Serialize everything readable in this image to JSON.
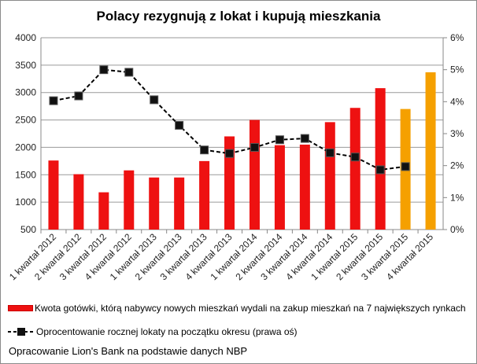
{
  "chart_data": {
    "type": "bar",
    "title": "Polacy rezygnują z lokat i kupują mieszkania",
    "categories": [
      "1 kwartał 2012",
      "2 kwartał 2012",
      "3 kwartał 2012",
      "4 kwartał 2012",
      "1 kwartał 2013",
      "2 kwartał 2013",
      "3 kwartał 2013",
      "4 kwartał 2013",
      "1 kwartał 2014",
      "2 kwartał 2014",
      "3 kwartał 2014",
      "4 kwartał 2014",
      "1 kwartał 2015",
      "2 kwartał 2015",
      "3 kwartał 2015",
      "4 kwartał 2015"
    ],
    "series": [
      {
        "name": "Kwota gotówki, którą nabywcy nowych mieszkań wydali na zakup mieszkań na 7 największych rynkach",
        "type": "bar",
        "axis": "left",
        "values": [
          1760,
          1510,
          1180,
          1580,
          1450,
          1450,
          1750,
          2200,
          2500,
          2040,
          2050,
          2460,
          2720,
          3080,
          2700,
          3370
        ],
        "colors": [
          "#ee1111",
          "#ee1111",
          "#ee1111",
          "#ee1111",
          "#ee1111",
          "#ee1111",
          "#ee1111",
          "#ee1111",
          "#ee1111",
          "#ee1111",
          "#ee1111",
          "#ee1111",
          "#ee1111",
          "#ee1111",
          "#f5a000",
          "#f5a000"
        ]
      },
      {
        "name": "Oprocentowanie rocznej lokaty na początku okresu (prawa oś)",
        "type": "line",
        "axis": "right",
        "style": "dashed",
        "marker": "square",
        "values": [
          4.03,
          4.18,
          5.0,
          4.92,
          4.06,
          3.26,
          2.49,
          2.38,
          2.57,
          2.81,
          2.85,
          2.4,
          2.27,
          1.87,
          1.97,
          null
        ]
      }
    ],
    "ylim": [
      500,
      4000
    ],
    "yticks": [
      "500",
      "1000",
      "1500",
      "2000",
      "2500",
      "3000",
      "3500",
      "4000"
    ],
    "y2lim": [
      0,
      6
    ],
    "y2ticks": [
      "0%",
      "1%",
      "2%",
      "3%",
      "4%",
      "5%",
      "6%"
    ],
    "grid": true,
    "legend": "bottom",
    "colors": {
      "bar": "#ee1111",
      "forecast_bar": "#f5a000",
      "line": "#000000"
    }
  },
  "footer": "Opracowanie Lion's Bank na podstawie danych NBP"
}
